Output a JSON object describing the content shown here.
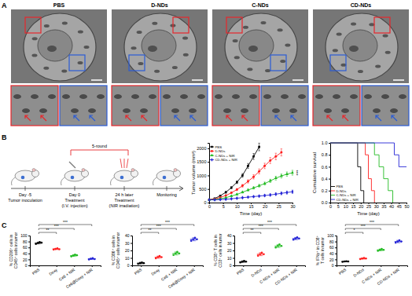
{
  "figure": {
    "panel_labels": [
      "A",
      "B",
      "C"
    ],
    "tem_titles": [
      "PBS",
      "D-NDs",
      "C-NDs",
      "CD-NDs"
    ],
    "schematic": {
      "bracket": "5-round",
      "steps": [
        [
          "Day -5",
          "Tumor inoculation"
        ],
        [
          "Day 0",
          "Treatment",
          "(I.V. injection)"
        ],
        [
          "24 h later",
          "Treatment",
          "(NIR irradiation)"
        ],
        [
          "Monitoring"
        ]
      ]
    }
  },
  "chart_data": [
    {
      "type": "line",
      "xlabel": "Time (day)",
      "ylabel": "Tumor volume (mm³)",
      "x": [
        0,
        2,
        4,
        6,
        8,
        10,
        12,
        14,
        16,
        18,
        20,
        22,
        24,
        26,
        28,
        30
      ],
      "xlim": [
        0,
        30
      ],
      "xticks": [
        0,
        5,
        10,
        15,
        20,
        25,
        30
      ],
      "ylim": [
        0,
        2200
      ],
      "yticks": [
        0,
        500,
        1000,
        1500,
        2000
      ],
      "legend": "upper left",
      "annotations": [
        "***"
      ],
      "series": [
        {
          "name": "PBS",
          "color": "#000000",
          "marker": "square",
          "values": [
            100,
            150,
            250,
            380,
            550,
            750,
            1000,
            1350,
            1700,
            2050,
            null,
            null,
            null,
            null,
            null,
            null
          ],
          "errors": [
            10,
            15,
            20,
            30,
            40,
            50,
            70,
            90,
            110,
            140,
            null,
            null,
            null,
            null,
            null,
            null
          ]
        },
        {
          "name": "D-NDs",
          "color": "#ff1f1f",
          "marker": "circle",
          "values": [
            100,
            130,
            190,
            260,
            360,
            480,
            620,
            780,
            950,
            1150,
            1350,
            1550,
            1700,
            1850,
            null,
            null
          ],
          "errors": [
            10,
            10,
            15,
            20,
            30,
            40,
            50,
            60,
            80,
            90,
            100,
            110,
            120,
            130,
            null,
            null
          ]
        },
        {
          "name": "C-NDs + NIR",
          "color": "#22bb22",
          "marker": "triangle",
          "values": [
            100,
            110,
            140,
            180,
            240,
            300,
            380,
            460,
            540,
            620,
            700,
            800,
            900,
            980,
            1050,
            1100
          ],
          "errors": [
            5,
            8,
            10,
            15,
            20,
            25,
            30,
            35,
            40,
            50,
            55,
            60,
            70,
            75,
            80,
            90
          ]
        },
        {
          "name": "CD-NDs + NIR",
          "color": "#2424d6",
          "marker": "diamond",
          "values": [
            100,
            100,
            110,
            120,
            140,
            160,
            180,
            200,
            220,
            240,
            260,
            280,
            310,
            340,
            370,
            400
          ],
          "errors": [
            5,
            5,
            8,
            10,
            12,
            15,
            18,
            20,
            25,
            30,
            35,
            40,
            45,
            50,
            55,
            60
          ]
        }
      ]
    },
    {
      "type": "line",
      "xlabel": "Time (day)",
      "ylabel": "Cumulative survival",
      "xlim": [
        0,
        50
      ],
      "xticks": [
        0,
        5,
        10,
        15,
        20,
        25,
        30,
        35,
        40,
        45,
        50
      ],
      "ylim": [
        0,
        1
      ],
      "yticks": [
        {
          "value": 0,
          "label": "0.0"
        },
        0.2,
        0.4,
        0.6,
        0.8,
        {
          "value": 1,
          "label": "1.0"
        }
      ],
      "legend": "lower left",
      "series": [
        {
          "name": "PBS",
          "color": "#000000",
          "line_style": "step",
          "x": [
            0,
            18,
            20,
            22
          ],
          "values": [
            1,
            0.6,
            0.2,
            0
          ]
        },
        {
          "name": "D-NDs",
          "color": "#ff1f1f",
          "line_style": "step",
          "x": [
            0,
            23,
            25,
            27,
            29
          ],
          "values": [
            1,
            0.8,
            0.4,
            0.2,
            0
          ]
        },
        {
          "name": "C-NDs + NIR",
          "color": "#22bb22",
          "line_style": "step",
          "x": [
            0,
            29,
            32,
            35,
            38,
            41
          ],
          "values": [
            1,
            0.8,
            0.6,
            0.4,
            0.2,
            0
          ]
        },
        {
          "name": "CD-NDs + NIR",
          "color": "#2424d6",
          "line_style": "step",
          "x": [
            0,
            42,
            45,
            50
          ],
          "values": [
            1,
            0.8,
            0.6,
            0.6
          ]
        }
      ]
    },
    {
      "type": "strip",
      "ylabel": "% CD206⁺ cells in CD45⁺ cells in tumor",
      "categories": [
        "PBS",
        "Doxy",
        "Ce6 + NIR",
        "Ce6@Doxy + NIR"
      ],
      "values": [
        75,
        55,
        33,
        22
      ],
      "errors": [
        3,
        2,
        3,
        2
      ],
      "points": [
        [
          72,
          75,
          78,
          76
        ],
        [
          53,
          55,
          57,
          54
        ],
        [
          30,
          33,
          36,
          34
        ],
        [
          20,
          22,
          24,
          21
        ]
      ],
      "colors": [
        "#000000",
        "#ff1f1f",
        "#22bb22",
        "#2424d6"
      ],
      "ylim": [
        0,
        100
      ],
      "yticks": [
        0,
        20,
        40,
        60,
        80,
        100
      ],
      "significance": [
        "**",
        "***",
        "***"
      ]
    },
    {
      "type": "strip",
      "ylabel": "% CD86⁺ cells in CD45⁺ cells in tumor",
      "categories": [
        "PBS",
        "Doxy",
        "Ce6 + NIR",
        "Ce6@Doxy + NIR"
      ],
      "values": [
        3,
        11,
        16,
        35
      ],
      "errors": [
        1,
        1.5,
        2,
        2
      ],
      "points": [
        [
          2,
          3,
          4,
          3
        ],
        [
          9.5,
          11,
          12.5,
          11
        ],
        [
          14,
          16,
          18,
          16
        ],
        [
          33,
          35,
          37,
          35
        ]
      ],
      "colors": [
        "#000000",
        "#ff1f1f",
        "#22bb22",
        "#2424d6"
      ],
      "ylim": [
        0,
        40
      ],
      "yticks": [
        0,
        10,
        20,
        30,
        40
      ],
      "significance": [
        "**",
        "***",
        "***"
      ]
    },
    {
      "type": "strip",
      "ylabel": "% CD8⁺ T cells in CD3⁺ cells in tumor",
      "categories": [
        "PBS",
        "D-NDs",
        "C-NDs + NIR",
        "CD-NDs + NIR"
      ],
      "values": [
        5,
        15,
        26,
        36
      ],
      "errors": [
        1,
        2,
        2,
        1.5
      ],
      "points": [
        [
          4,
          5,
          6,
          5
        ],
        [
          13,
          15,
          17,
          15
        ],
        [
          24,
          26,
          28,
          26
        ],
        [
          34.5,
          36,
          37.5,
          36
        ]
      ],
      "colors": [
        "#000000",
        "#ff1f1f",
        "#22bb22",
        "#2424d6"
      ],
      "ylim": [
        0,
        40
      ],
      "yticks": [
        0,
        10,
        20,
        30,
        40
      ],
      "significance": [
        "**",
        "***",
        "***"
      ]
    },
    {
      "type": "strip",
      "ylabel": "% IFNγ⁺ in CD8⁺ T cells in tumor",
      "categories": [
        "PBS",
        "D-NDs",
        "C-NDs + NIR",
        "CD-NDs + NIR"
      ],
      "values": [
        13,
        23,
        52,
        80
      ],
      "errors": [
        1,
        2,
        3,
        4
      ],
      "points": [
        [
          12,
          13,
          14,
          13
        ],
        [
          21,
          23,
          25,
          23
        ],
        [
          49,
          52,
          55,
          52
        ],
        [
          76,
          80,
          84,
          80
        ]
      ],
      "colors": [
        "#000000",
        "#ff1f1f",
        "#22bb22",
        "#2424d6"
      ],
      "ylim": [
        0,
        100
      ],
      "yticks": [
        0,
        20,
        40,
        60,
        80,
        100
      ],
      "significance": [
        "*",
        "***",
        "***"
      ]
    }
  ]
}
